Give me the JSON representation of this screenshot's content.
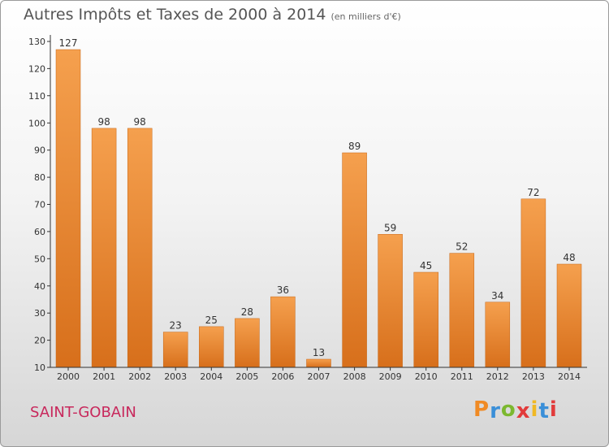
{
  "chart_data": {
    "type": "bar",
    "title": "Autres Impôts et Taxes de 2000 à 2014",
    "subtitle": "(en milliers d'€)",
    "categories": [
      "2000",
      "2001",
      "2002",
      "2003",
      "2004",
      "2005",
      "2006",
      "2007",
      "2008",
      "2009",
      "2010",
      "2011",
      "2012",
      "2013",
      "2014"
    ],
    "values": [
      127,
      98,
      98,
      23,
      25,
      28,
      36,
      13,
      89,
      59,
      45,
      52,
      34,
      72,
      48
    ],
    "data_labels": [
      "127",
      "98",
      "98",
      "23",
      "25",
      "28",
      "36",
      "13",
      "89",
      "59",
      "45",
      "52",
      "34",
      "72",
      "48"
    ],
    "yticks": [
      "10",
      "20",
      "30",
      "40",
      "50",
      "60",
      "70",
      "80",
      "90",
      "100",
      "110",
      "120",
      "130"
    ],
    "ylim": [
      10,
      130
    ],
    "grid": false,
    "xlabel": "",
    "ylabel": ""
  },
  "location": "SAINT-GOBAIN",
  "logo": {
    "text": "Proxiti"
  },
  "colors": {
    "bar_light": "#f5a04e",
    "bar_dark": "#d76f1b",
    "axis": "#333333",
    "location": "#c8285c",
    "logo_letters": [
      "#f08a24",
      "#3a8fd8",
      "#7cb82f",
      "#e23b3b",
      "#f0b823",
      "#3a8fd8",
      "#e23b3b"
    ]
  }
}
